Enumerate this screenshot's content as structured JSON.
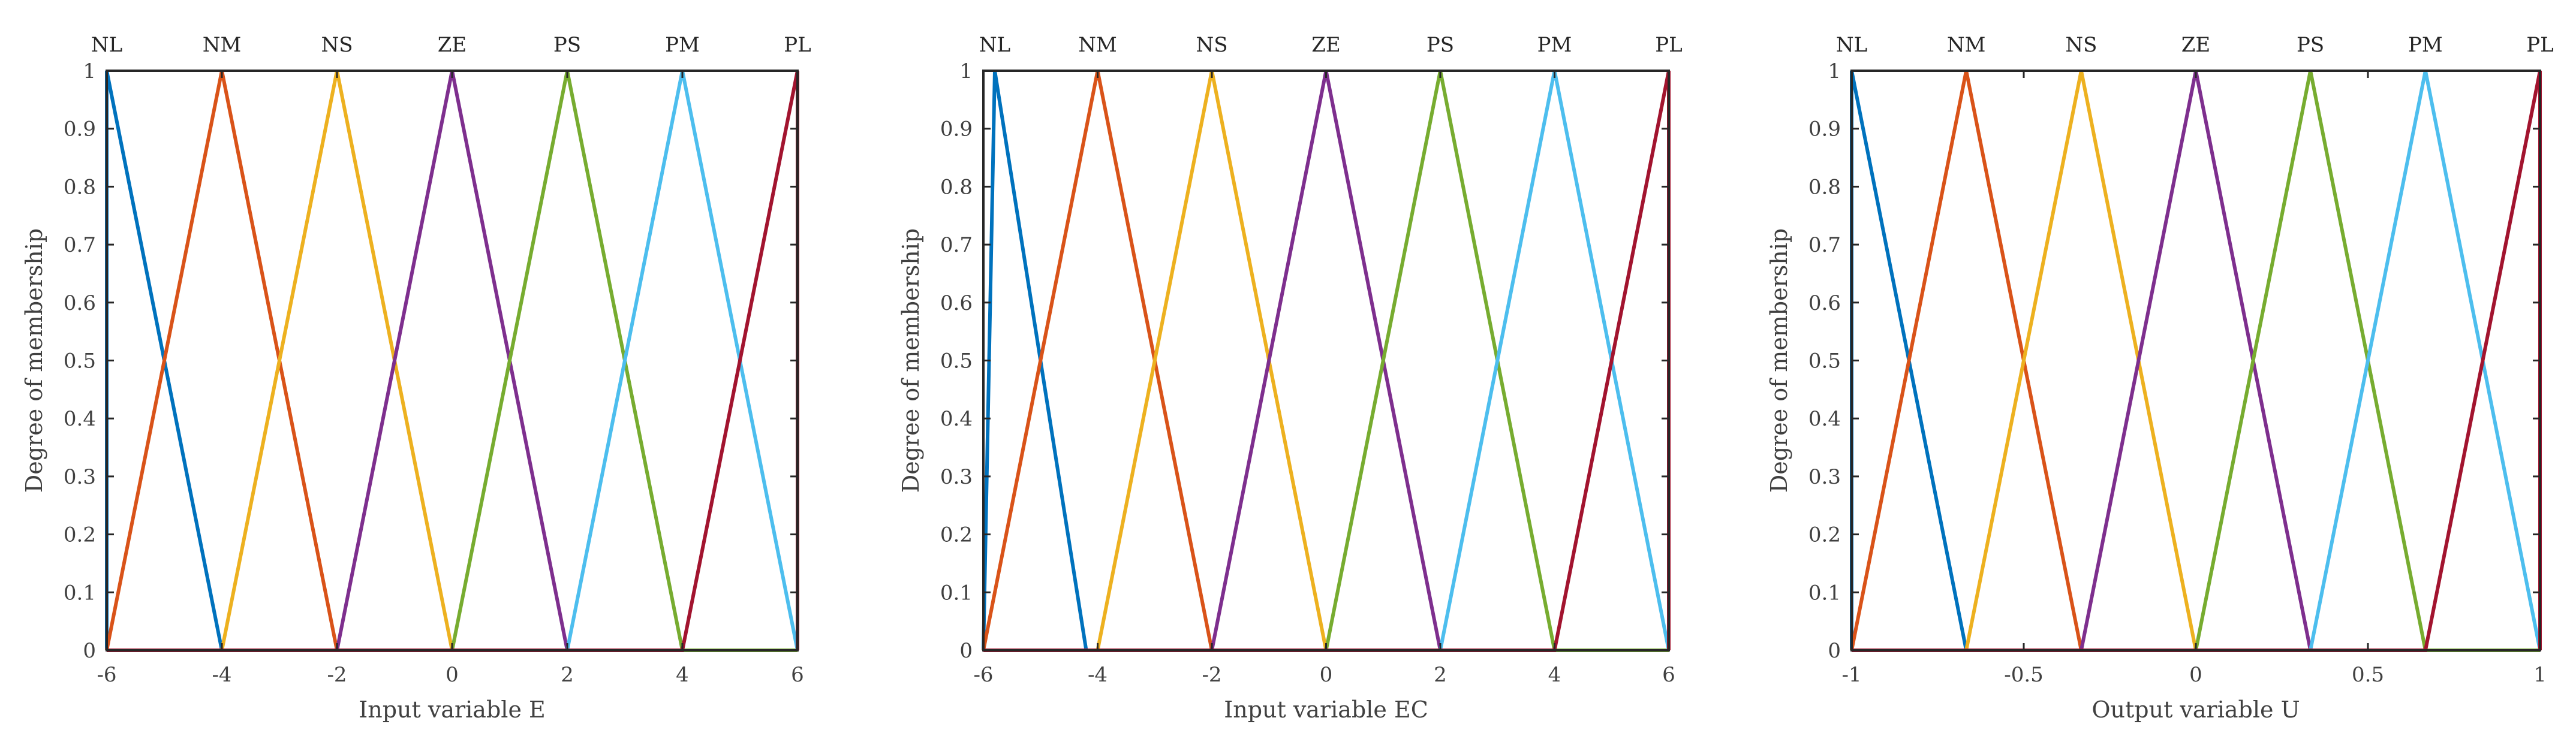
{
  "chart_data": [
    {
      "type": "line",
      "xlabel": "Input variable E",
      "ylabel": "Degree of membership",
      "xlim": [
        -6,
        6
      ],
      "ylim": [
        0,
        1
      ],
      "xticks": [
        "-6",
        "-4",
        "-2",
        "0",
        "2",
        "4",
        "6"
      ],
      "yticks": [
        "0",
        "0.1",
        "0.2",
        "0.3",
        "0.4",
        "0.5",
        "0.6",
        "0.7",
        "0.8",
        "0.9",
        "1"
      ],
      "membership_labels": [
        "NL",
        "NM",
        "NS",
        "ZE",
        "PS",
        "PM",
        "PL"
      ],
      "series": [
        {
          "name": "NL",
          "color": "#0072BD",
          "x": [
            -6,
            -6,
            -4,
            6
          ],
          "y": [
            0,
            1,
            0,
            0
          ]
        },
        {
          "name": "NM",
          "color": "#D95319",
          "x": [
            -6,
            -4,
            -2,
            6
          ],
          "y": [
            0,
            1,
            0,
            0
          ]
        },
        {
          "name": "NS",
          "color": "#EDB120",
          "x": [
            -6,
            -4,
            -2,
            0,
            6
          ],
          "y": [
            0,
            0,
            1,
            0,
            0
          ]
        },
        {
          "name": "ZE",
          "color": "#7E2F8E",
          "x": [
            -6,
            -2,
            0,
            2,
            6
          ],
          "y": [
            0,
            0,
            1,
            0,
            0
          ]
        },
        {
          "name": "PS",
          "color": "#77AC30",
          "x": [
            -6,
            0,
            2,
            4,
            6
          ],
          "y": [
            0,
            0,
            1,
            0,
            0
          ]
        },
        {
          "name": "PM",
          "color": "#4DBEEE",
          "x": [
            -6,
            2,
            4,
            6,
            6
          ],
          "y": [
            0,
            0,
            1,
            0,
            0
          ]
        },
        {
          "name": "PL",
          "color": "#A2142F",
          "x": [
            -6,
            4,
            6,
            6
          ],
          "y": [
            0,
            0,
            1,
            0
          ]
        }
      ]
    },
    {
      "type": "line",
      "xlabel": "Input variable EC",
      "ylabel": "Degree of membership",
      "xlim": [
        -6,
        6
      ],
      "ylim": [
        0,
        1
      ],
      "xticks": [
        "-6",
        "-4",
        "-2",
        "0",
        "2",
        "4",
        "6"
      ],
      "yticks": [
        "0",
        "0.1",
        "0.2",
        "0.3",
        "0.4",
        "0.5",
        "0.6",
        "0.7",
        "0.8",
        "0.9",
        "1"
      ],
      "membership_labels": [
        "NL",
        "NM",
        "NS",
        "ZE",
        "PS",
        "PM",
        "PL"
      ],
      "series": [
        {
          "name": "NL",
          "color": "#0072BD",
          "x": [
            -6,
            -5.8,
            -4.2,
            6
          ],
          "y": [
            0,
            1,
            0,
            0
          ]
        },
        {
          "name": "NM",
          "color": "#D95319",
          "x": [
            -6,
            -4,
            -2,
            6
          ],
          "y": [
            0,
            1,
            0,
            0
          ]
        },
        {
          "name": "NS",
          "color": "#EDB120",
          "x": [
            -6,
            -4,
            -2,
            0,
            6
          ],
          "y": [
            0,
            0,
            1,
            0,
            0
          ]
        },
        {
          "name": "ZE",
          "color": "#7E2F8E",
          "x": [
            -6,
            -2,
            0,
            2,
            6
          ],
          "y": [
            0,
            0,
            1,
            0,
            0
          ]
        },
        {
          "name": "PS",
          "color": "#77AC30",
          "x": [
            -6,
            0,
            2,
            4,
            6
          ],
          "y": [
            0,
            0,
            1,
            0,
            0
          ]
        },
        {
          "name": "PM",
          "color": "#4DBEEE",
          "x": [
            -6,
            2,
            4,
            6,
            6
          ],
          "y": [
            0,
            0,
            1,
            0,
            0
          ]
        },
        {
          "name": "PL",
          "color": "#A2142F",
          "x": [
            -6,
            4,
            6,
            6
          ],
          "y": [
            0,
            0,
            1,
            0
          ]
        }
      ]
    },
    {
      "type": "line",
      "xlabel": "Output variable U",
      "ylabel": "Degree of membership",
      "xlim": [
        -1,
        1
      ],
      "ylim": [
        0,
        1
      ],
      "xticks": [
        "-1",
        "-0.5",
        "0",
        "0.5",
        "1"
      ],
      "yticks": [
        "0",
        "0.1",
        "0.2",
        "0.3",
        "0.4",
        "0.5",
        "0.6",
        "0.7",
        "0.8",
        "0.9",
        "1"
      ],
      "membership_labels": [
        "NL",
        "NM",
        "NS",
        "ZE",
        "PS",
        "PM",
        "PL"
      ],
      "series": [
        {
          "name": "NL",
          "color": "#0072BD",
          "x": [
            -1,
            -1,
            -0.667,
            1
          ],
          "y": [
            0,
            1,
            0,
            0
          ]
        },
        {
          "name": "NM",
          "color": "#D95319",
          "x": [
            -1,
            -0.667,
            -0.333,
            1
          ],
          "y": [
            0,
            1,
            0,
            0
          ]
        },
        {
          "name": "NS",
          "color": "#EDB120",
          "x": [
            -1,
            -0.667,
            -0.333,
            0,
            1
          ],
          "y": [
            0,
            0,
            1,
            0,
            0
          ]
        },
        {
          "name": "ZE",
          "color": "#7E2F8E",
          "x": [
            -1,
            -0.333,
            0,
            0.333,
            1
          ],
          "y": [
            0,
            0,
            1,
            0,
            0
          ]
        },
        {
          "name": "PS",
          "color": "#77AC30",
          "x": [
            -1,
            0,
            0.333,
            0.667,
            1
          ],
          "y": [
            0,
            0,
            1,
            0,
            0
          ]
        },
        {
          "name": "PM",
          "color": "#4DBEEE",
          "x": [
            -1,
            0.333,
            0.667,
            1,
            1
          ],
          "y": [
            0,
            0,
            1,
            0,
            0
          ]
        },
        {
          "name": "PL",
          "color": "#A2142F",
          "x": [
            -1,
            0.667,
            1,
            1
          ],
          "y": [
            0,
            0,
            1,
            0
          ]
        }
      ]
    }
  ]
}
